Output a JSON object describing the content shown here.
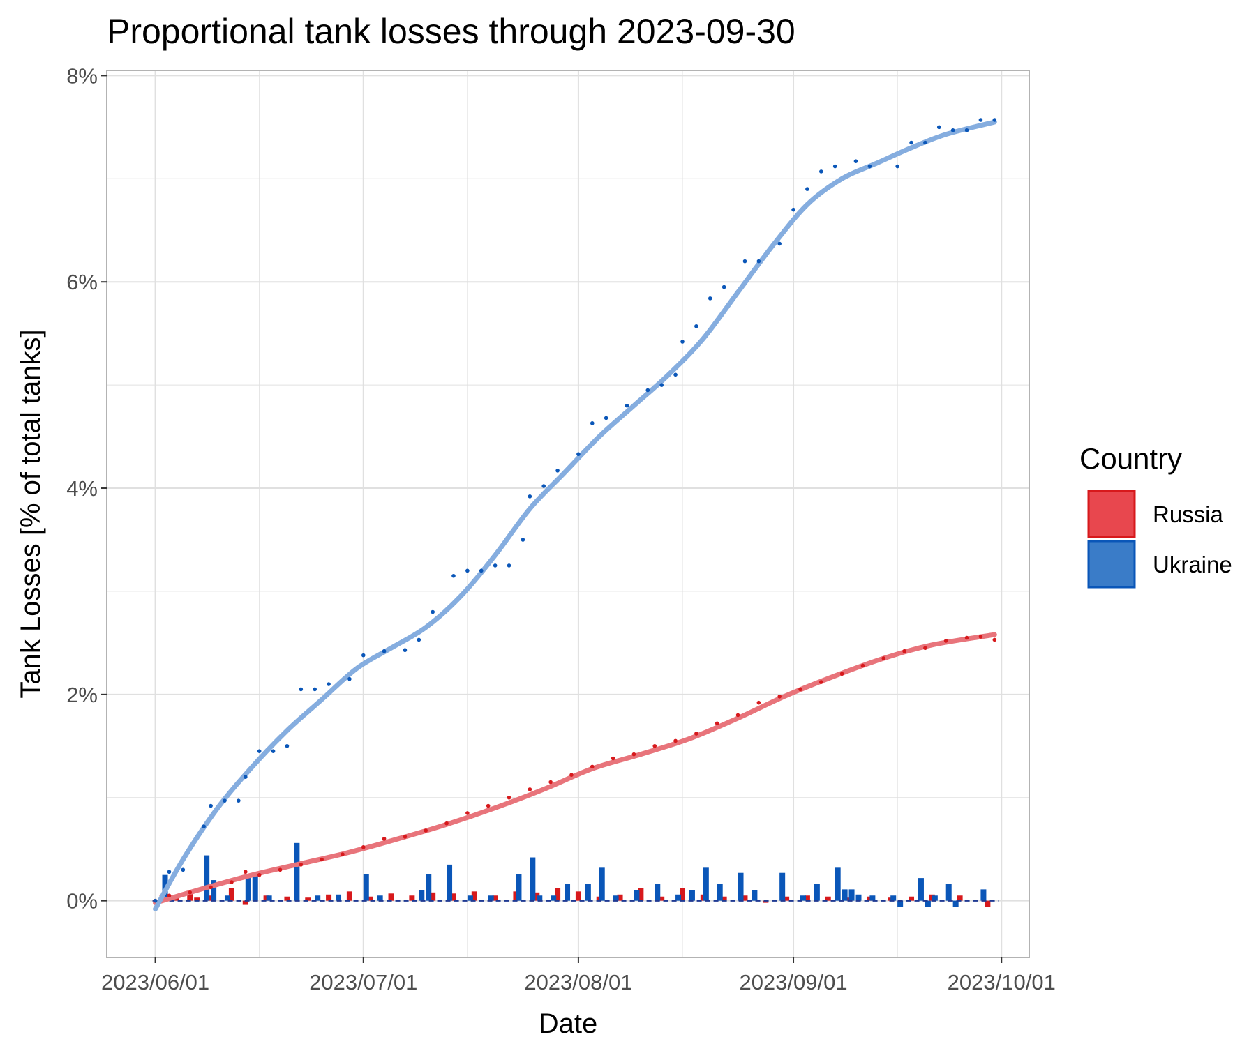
{
  "chart_data": {
    "type": "line",
    "title": "Proportional tank losses through 2023-09-30",
    "xlabel": "Date",
    "ylabel": "Tank Losses [% of total tanks]",
    "x_range": [
      "2023-05-25",
      "2023-10-05"
    ],
    "y_range": [
      -0.55,
      8.05
    ],
    "x_ticks": [
      {
        "date": "2023-06-01",
        "label": "2023/06/01"
      },
      {
        "date": "2023-07-01",
        "label": "2023/07/01"
      },
      {
        "date": "2023-08-01",
        "label": "2023/08/01"
      },
      {
        "date": "2023-09-01",
        "label": "2023/09/01"
      },
      {
        "date": "2023-10-01",
        "label": "2023/10/01"
      }
    ],
    "x_minor_ticks": [
      "2023-06-16",
      "2023-07-16",
      "2023-08-16",
      "2023-09-16"
    ],
    "y_ticks": [
      {
        "value": 0,
        "label": "0%"
      },
      {
        "value": 2,
        "label": "2%"
      },
      {
        "value": 4,
        "label": "4%"
      },
      {
        "value": 6,
        "label": "6%"
      },
      {
        "value": 8,
        "label": "8%"
      }
    ],
    "y_minor_ticks": [
      1,
      3,
      5,
      7
    ],
    "grid": true,
    "legend": {
      "title": "Country",
      "position": "right",
      "entries": [
        {
          "label": "Russia",
          "fill": "#E8474E",
          "stroke": "#D7191C"
        },
        {
          "label": "Ukraine",
          "fill": "#3A7CC8",
          "stroke": "#0A56B8"
        }
      ]
    },
    "layers": [
      "daily bars",
      "smoothed trend",
      "cumulative points"
    ],
    "colors": {
      "russia_points": "#D7191C",
      "russia_trend": "#E8747B",
      "ukraine_points": "#0A56B8",
      "ukraine_trend": "#85ADDF",
      "zero_line": "#1F3A93",
      "grid": "#E0E0E0",
      "panel_border": "#B3B3B3"
    },
    "series": [
      {
        "name": "Russia",
        "cumulative": [
          [
            "2023-06-01",
            0.0
          ],
          [
            "2023-06-03",
            0.05
          ],
          [
            "2023-06-06",
            0.08
          ],
          [
            "2023-06-09",
            0.13
          ],
          [
            "2023-06-12",
            0.18
          ],
          [
            "2023-06-14",
            0.28
          ],
          [
            "2023-06-16",
            0.25
          ],
          [
            "2023-06-19",
            0.3
          ],
          [
            "2023-06-22",
            0.35
          ],
          [
            "2023-06-25",
            0.4
          ],
          [
            "2023-06-28",
            0.45
          ],
          [
            "2023-07-01",
            0.52
          ],
          [
            "2023-07-04",
            0.6
          ],
          [
            "2023-07-07",
            0.62
          ],
          [
            "2023-07-10",
            0.68
          ],
          [
            "2023-07-13",
            0.75
          ],
          [
            "2023-07-16",
            0.85
          ],
          [
            "2023-07-19",
            0.92
          ],
          [
            "2023-07-22",
            1.0
          ],
          [
            "2023-07-25",
            1.08
          ],
          [
            "2023-07-28",
            1.15
          ],
          [
            "2023-07-31",
            1.22
          ],
          [
            "2023-08-03",
            1.3
          ],
          [
            "2023-08-06",
            1.38
          ],
          [
            "2023-08-09",
            1.42
          ],
          [
            "2023-08-12",
            1.5
          ],
          [
            "2023-08-15",
            1.55
          ],
          [
            "2023-08-18",
            1.62
          ],
          [
            "2023-08-21",
            1.72
          ],
          [
            "2023-08-24",
            1.8
          ],
          [
            "2023-08-27",
            1.92
          ],
          [
            "2023-08-30",
            1.98
          ],
          [
            "2023-09-02",
            2.05
          ],
          [
            "2023-09-05",
            2.12
          ],
          [
            "2023-09-08",
            2.2
          ],
          [
            "2023-09-11",
            2.28
          ],
          [
            "2023-09-14",
            2.35
          ],
          [
            "2023-09-17",
            2.42
          ],
          [
            "2023-09-20",
            2.45
          ],
          [
            "2023-09-23",
            2.52
          ],
          [
            "2023-09-26",
            2.55
          ],
          [
            "2023-09-28",
            2.56
          ],
          [
            "2023-09-30",
            2.53
          ]
        ],
        "trend": [
          [
            "2023-06-01",
            -0.02
          ],
          [
            "2023-06-08",
            0.12
          ],
          [
            "2023-06-15",
            0.25
          ],
          [
            "2023-06-22",
            0.36
          ],
          [
            "2023-06-29",
            0.47
          ],
          [
            "2023-07-06",
            0.6
          ],
          [
            "2023-07-13",
            0.74
          ],
          [
            "2023-07-20",
            0.9
          ],
          [
            "2023-07-27",
            1.08
          ],
          [
            "2023-08-03",
            1.28
          ],
          [
            "2023-08-10",
            1.42
          ],
          [
            "2023-08-17",
            1.57
          ],
          [
            "2023-08-24",
            1.77
          ],
          [
            "2023-08-31",
            1.99
          ],
          [
            "2023-09-07",
            2.18
          ],
          [
            "2023-09-14",
            2.35
          ],
          [
            "2023-09-21",
            2.48
          ],
          [
            "2023-09-30",
            2.58
          ]
        ],
        "daily": [
          [
            "2023-06-02",
            0.05
          ],
          [
            "2023-06-04",
            0.04
          ],
          [
            "2023-06-06",
            0.07
          ],
          [
            "2023-06-07",
            0.03
          ],
          [
            "2023-06-09",
            0.05
          ],
          [
            "2023-06-12",
            0.12
          ],
          [
            "2023-06-14",
            -0.04
          ],
          [
            "2023-06-17",
            0.05
          ],
          [
            "2023-06-20",
            0.04
          ],
          [
            "2023-06-23",
            0.03
          ],
          [
            "2023-06-26",
            0.06
          ],
          [
            "2023-06-29",
            0.09
          ],
          [
            "2023-07-02",
            0.04
          ],
          [
            "2023-07-05",
            0.07
          ],
          [
            "2023-07-08",
            0.05
          ],
          [
            "2023-07-11",
            0.08
          ],
          [
            "2023-07-14",
            0.07
          ],
          [
            "2023-07-17",
            0.09
          ],
          [
            "2023-07-20",
            0.05
          ],
          [
            "2023-07-23",
            0.09
          ],
          [
            "2023-07-26",
            0.08
          ],
          [
            "2023-07-29",
            0.12
          ],
          [
            "2023-08-01",
            0.09
          ],
          [
            "2023-08-04",
            0.04
          ],
          [
            "2023-08-07",
            0.06
          ],
          [
            "2023-08-10",
            0.12
          ],
          [
            "2023-08-13",
            0.04
          ],
          [
            "2023-08-16",
            0.12
          ],
          [
            "2023-08-19",
            0.06
          ],
          [
            "2023-08-22",
            0.04
          ],
          [
            "2023-08-25",
            0.05
          ],
          [
            "2023-08-28",
            -0.02
          ],
          [
            "2023-08-31",
            0.04
          ],
          [
            "2023-09-03",
            0.05
          ],
          [
            "2023-09-06",
            0.04
          ],
          [
            "2023-09-09",
            0.03
          ],
          [
            "2023-09-12",
            0.04
          ],
          [
            "2023-09-15",
            0.03
          ],
          [
            "2023-09-18",
            0.04
          ],
          [
            "2023-09-21",
            0.06
          ],
          [
            "2023-09-25",
            0.05
          ],
          [
            "2023-09-29",
            -0.06
          ]
        ]
      },
      {
        "name": "Ukraine",
        "cumulative": [
          [
            "2023-06-01",
            0.0
          ],
          [
            "2023-06-03",
            0.28
          ],
          [
            "2023-06-05",
            0.3
          ],
          [
            "2023-06-08",
            0.72
          ],
          [
            "2023-06-09",
            0.92
          ],
          [
            "2023-06-11",
            0.97
          ],
          [
            "2023-06-13",
            0.97
          ],
          [
            "2023-06-14",
            1.2
          ],
          [
            "2023-06-16",
            1.45
          ],
          [
            "2023-06-18",
            1.45
          ],
          [
            "2023-06-20",
            1.5
          ],
          [
            "2023-06-22",
            2.05
          ],
          [
            "2023-06-24",
            2.05
          ],
          [
            "2023-06-26",
            2.1
          ],
          [
            "2023-06-29",
            2.15
          ],
          [
            "2023-07-01",
            2.38
          ],
          [
            "2023-07-04",
            2.42
          ],
          [
            "2023-07-07",
            2.43
          ],
          [
            "2023-07-09",
            2.53
          ],
          [
            "2023-07-11",
            2.8
          ],
          [
            "2023-07-14",
            3.15
          ],
          [
            "2023-07-16",
            3.2
          ],
          [
            "2023-07-18",
            3.2
          ],
          [
            "2023-07-20",
            3.25
          ],
          [
            "2023-07-22",
            3.25
          ],
          [
            "2023-07-24",
            3.5
          ],
          [
            "2023-07-25",
            3.92
          ],
          [
            "2023-07-27",
            4.02
          ],
          [
            "2023-07-29",
            4.17
          ],
          [
            "2023-08-01",
            4.33
          ],
          [
            "2023-08-03",
            4.63
          ],
          [
            "2023-08-05",
            4.68
          ],
          [
            "2023-08-08",
            4.8
          ],
          [
            "2023-08-11",
            4.95
          ],
          [
            "2023-08-13",
            5.0
          ],
          [
            "2023-08-15",
            5.1
          ],
          [
            "2023-08-16",
            5.42
          ],
          [
            "2023-08-18",
            5.57
          ],
          [
            "2023-08-20",
            5.84
          ],
          [
            "2023-08-22",
            5.95
          ],
          [
            "2023-08-25",
            6.2
          ],
          [
            "2023-08-27",
            6.2
          ],
          [
            "2023-08-30",
            6.37
          ],
          [
            "2023-09-01",
            6.7
          ],
          [
            "2023-09-03",
            6.9
          ],
          [
            "2023-09-05",
            7.07
          ],
          [
            "2023-09-07",
            7.12
          ],
          [
            "2023-09-10",
            7.17
          ],
          [
            "2023-09-12",
            7.12
          ],
          [
            "2023-09-16",
            7.12
          ],
          [
            "2023-09-18",
            7.35
          ],
          [
            "2023-09-20",
            7.35
          ],
          [
            "2023-09-22",
            7.5
          ],
          [
            "2023-09-24",
            7.47
          ],
          [
            "2023-09-26",
            7.47
          ],
          [
            "2023-09-28",
            7.57
          ],
          [
            "2023-09-30",
            7.57
          ]
        ],
        "trend": [
          [
            "2023-06-01",
            -0.08
          ],
          [
            "2023-06-05",
            0.4
          ],
          [
            "2023-06-10",
            0.9
          ],
          [
            "2023-06-15",
            1.3
          ],
          [
            "2023-06-20",
            1.65
          ],
          [
            "2023-06-25",
            1.95
          ],
          [
            "2023-06-30",
            2.25
          ],
          [
            "2023-07-05",
            2.45
          ],
          [
            "2023-07-10",
            2.65
          ],
          [
            "2023-07-15",
            2.95
          ],
          [
            "2023-07-20",
            3.35
          ],
          [
            "2023-07-25",
            3.8
          ],
          [
            "2023-07-30",
            4.15
          ],
          [
            "2023-08-04",
            4.5
          ],
          [
            "2023-08-09",
            4.8
          ],
          [
            "2023-08-14",
            5.1
          ],
          [
            "2023-08-19",
            5.45
          ],
          [
            "2023-08-24",
            5.9
          ],
          [
            "2023-08-29",
            6.35
          ],
          [
            "2023-09-03",
            6.75
          ],
          [
            "2023-09-08",
            7.0
          ],
          [
            "2023-09-13",
            7.15
          ],
          [
            "2023-09-18",
            7.3
          ],
          [
            "2023-09-23",
            7.43
          ],
          [
            "2023-09-30",
            7.55
          ]
        ],
        "daily": [
          [
            "2023-06-02",
            0.25
          ],
          [
            "2023-06-03",
            0.04
          ],
          [
            "2023-06-08",
            0.44
          ],
          [
            "2023-06-09",
            0.2
          ],
          [
            "2023-06-11",
            0.05
          ],
          [
            "2023-06-14",
            0.25
          ],
          [
            "2023-06-15",
            0.27
          ],
          [
            "2023-06-17",
            0.05
          ],
          [
            "2023-06-21",
            0.56
          ],
          [
            "2023-06-24",
            0.05
          ],
          [
            "2023-06-27",
            0.06
          ],
          [
            "2023-07-01",
            0.26
          ],
          [
            "2023-07-03",
            0.05
          ],
          [
            "2023-07-09",
            0.1
          ],
          [
            "2023-07-10",
            0.26
          ],
          [
            "2023-07-13",
            0.35
          ],
          [
            "2023-07-16",
            0.05
          ],
          [
            "2023-07-19",
            0.05
          ],
          [
            "2023-07-23",
            0.26
          ],
          [
            "2023-07-25",
            0.42
          ],
          [
            "2023-07-26",
            0.05
          ],
          [
            "2023-07-28",
            0.05
          ],
          [
            "2023-07-30",
            0.16
          ],
          [
            "2023-08-02",
            0.16
          ],
          [
            "2023-08-04",
            0.32
          ],
          [
            "2023-08-06",
            0.05
          ],
          [
            "2023-08-09",
            0.1
          ],
          [
            "2023-08-12",
            0.16
          ],
          [
            "2023-08-15",
            0.06
          ],
          [
            "2023-08-17",
            0.1
          ],
          [
            "2023-08-19",
            0.32
          ],
          [
            "2023-08-21",
            0.16
          ],
          [
            "2023-08-24",
            0.27
          ],
          [
            "2023-08-26",
            0.1
          ],
          [
            "2023-08-30",
            0.27
          ],
          [
            "2023-09-02",
            0.05
          ],
          [
            "2023-09-04",
            0.16
          ],
          [
            "2023-09-07",
            0.32
          ],
          [
            "2023-09-08",
            0.11
          ],
          [
            "2023-09-09",
            0.11
          ],
          [
            "2023-09-10",
            0.06
          ],
          [
            "2023-09-12",
            0.05
          ],
          [
            "2023-09-15",
            0.05
          ],
          [
            "2023-09-16",
            -0.06
          ],
          [
            "2023-09-19",
            0.22
          ],
          [
            "2023-09-20",
            -0.06
          ],
          [
            "2023-09-21",
            0.05
          ],
          [
            "2023-09-23",
            0.16
          ],
          [
            "2023-09-24",
            -0.06
          ],
          [
            "2023-09-28",
            0.11
          ]
        ]
      }
    ]
  }
}
